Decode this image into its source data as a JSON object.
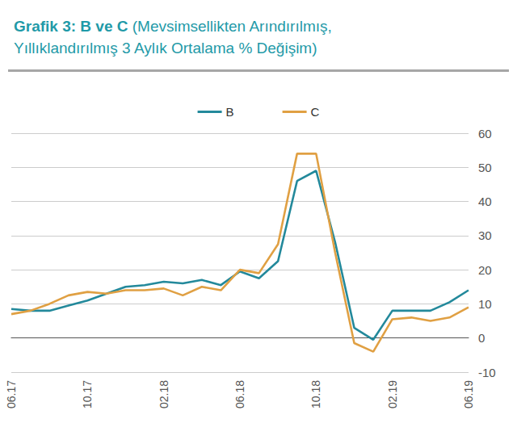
{
  "chart_data": {
    "type": "line",
    "title": "Grafik 3: B ve C",
    "subtitle": "(Mevsimsellikten Arındırılmış, Yıllıklandırılmış 3 Aylık Ortalama % Değişim)",
    "categories": [
      "06.17",
      null,
      null,
      null,
      "10.17",
      null,
      null,
      null,
      "02.18",
      null,
      null,
      null,
      "06.18",
      null,
      null,
      null,
      "10.18",
      null,
      null,
      null,
      "02.19",
      null,
      null,
      null,
      "06.19"
    ],
    "series": [
      {
        "name": "B",
        "color": "#23899b",
        "values": [
          8.5,
          8,
          8,
          9.5,
          11,
          13,
          15,
          15.5,
          16.5,
          16,
          17,
          15.5,
          19.5,
          17.5,
          22.5,
          46,
          49,
          28,
          3,
          -0.5,
          8,
          8,
          8,
          10.5,
          14
        ]
      },
      {
        "name": "C",
        "color": "#e0a043",
        "values": [
          7,
          8,
          10,
          12.5,
          13.5,
          13,
          14,
          14,
          14.5,
          12.5,
          15,
          14,
          20,
          19,
          27.5,
          54,
          54,
          25,
          -1.5,
          -4,
          5.5,
          6,
          5,
          6,
          9
        ]
      }
    ],
    "ylim": [
      -10,
      60
    ],
    "yticks": [
      -10,
      0,
      10,
      20,
      30,
      40,
      50,
      60
    ],
    "grid": true,
    "legend": "top"
  }
}
